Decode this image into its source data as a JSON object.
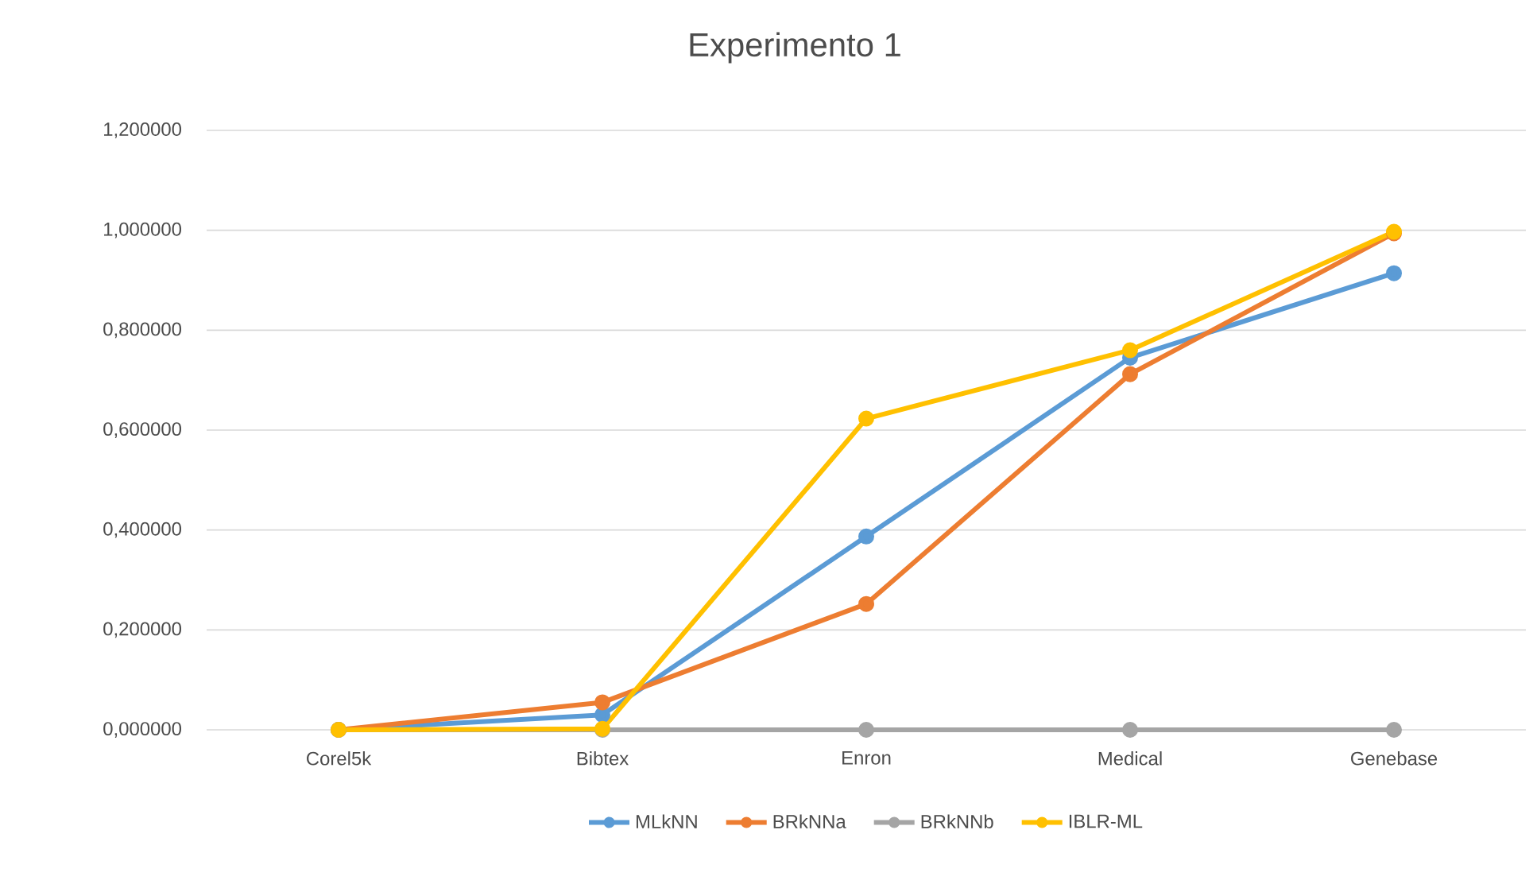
{
  "chart_data": {
    "type": "line",
    "title": "Experimento 1",
    "categories": [
      "Corel5k",
      "Bibtex",
      "Enron",
      "Medical",
      "Genebase"
    ],
    "series": [
      {
        "name": "MLkNN",
        "color": "#5b9bd5",
        "values": [
          0.0,
          0.03,
          0.387,
          0.745,
          0.914
        ]
      },
      {
        "name": "BRkNNa",
        "color": "#ed7d31",
        "values": [
          0.0,
          0.055,
          0.252,
          0.712,
          0.994
        ]
      },
      {
        "name": "BRkNNb",
        "color": "#a5a5a5",
        "values": [
          0.0,
          0.0,
          0.0,
          0.0,
          0.0
        ]
      },
      {
        "name": "IBLR-ML",
        "color": "#ffc000",
        "values": [
          0.0,
          0.002,
          0.623,
          0.76,
          0.997
        ]
      }
    ],
    "ylim": [
      0,
      1.2
    ],
    "yticks": [
      {
        "value": 0,
        "label": "0,000000"
      },
      {
        "value": 0.2,
        "label": "0,200000"
      },
      {
        "value": 0.4,
        "label": "0,400000"
      },
      {
        "value": 0.6,
        "label": "0,600000"
      },
      {
        "value": 0.8,
        "label": "0,800000"
      },
      {
        "value": 1.0,
        "label": "1,000000"
      },
      {
        "value": 1.2,
        "label": "1,200000"
      }
    ],
    "grid": "y",
    "legend": "bottom",
    "marker": "circle",
    "line_style": "solid"
  }
}
